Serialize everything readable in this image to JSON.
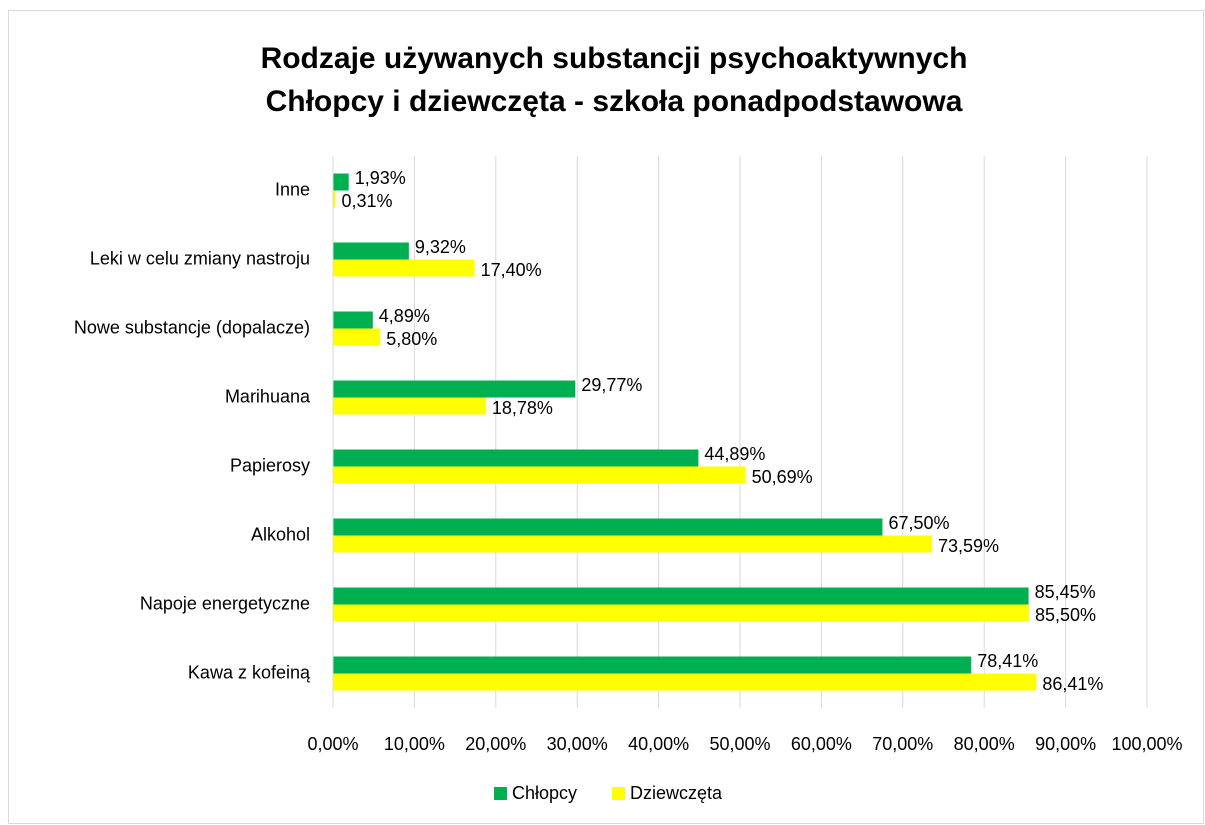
{
  "chart_data": {
    "type": "bar",
    "orientation": "horizontal",
    "title": [
      "Rodzaje używanych substancji psychoaktywnych",
      "Chłopcy i dziewczęta - szkoła ponadpodstawowa"
    ],
    "categories": [
      "Inne",
      "Leki w celu zmiany nastroju",
      "Nowe substancje (dopalacze)",
      "Marihuana",
      "Papierosy",
      "Alkohol",
      "Napoje energetyczne",
      "Kawa z kofeiną"
    ],
    "series": [
      {
        "name": "Chłopcy",
        "color": "#00b050",
        "values": [
          1.93,
          9.32,
          4.89,
          29.77,
          44.89,
          67.5,
          85.45,
          78.41
        ],
        "value_labels": [
          "1,93%",
          "9,32%",
          "4,89%",
          "29,77%",
          "44,89%",
          "67,50%",
          "85,45%",
          "78,41%"
        ]
      },
      {
        "name": "Dziewczęta",
        "color": "#ffff00",
        "values": [
          0.31,
          17.4,
          5.8,
          18.78,
          50.69,
          73.59,
          85.5,
          86.41
        ],
        "value_labels": [
          "0,31%",
          "17,40%",
          "5,80%",
          "18,78%",
          "50,69%",
          "73,59%",
          "85,50%",
          "86,41%"
        ]
      }
    ],
    "xlim": [
      0,
      100
    ],
    "xticks": [
      {
        "value": 0,
        "label": "0,00%"
      },
      {
        "value": 10,
        "label": "10,00%"
      },
      {
        "value": 20,
        "label": "20,00%"
      },
      {
        "value": 30,
        "label": "30,00%"
      },
      {
        "value": 40,
        "label": "40,00%"
      },
      {
        "value": 50,
        "label": "50,00%"
      },
      {
        "value": 60,
        "label": "60,00%"
      },
      {
        "value": 70,
        "label": "70,00%"
      },
      {
        "value": 80,
        "label": "80,00%"
      },
      {
        "value": 90,
        "label": "90,00%"
      },
      {
        "value": 100,
        "label": "100,00%"
      }
    ],
    "grid": true,
    "legend": "bottom"
  }
}
